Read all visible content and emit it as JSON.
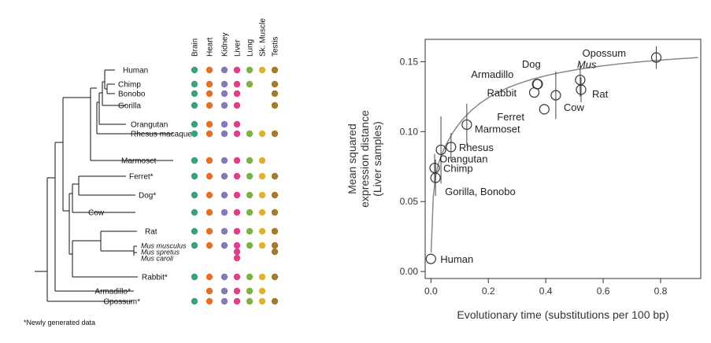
{
  "panel_a": {
    "tissues": [
      "Brain",
      "Heart",
      "Kidney",
      "Liver",
      "Lung",
      "Sk. Muscle",
      "Testis"
    ],
    "tissue_colors": [
      "#3aa27a",
      "#e2702a",
      "#8479b8",
      "#e03d8c",
      "#7ab342",
      "#e1b12e",
      "#a67a2c"
    ],
    "species": [
      {
        "name": "Human",
        "italic": false,
        "tissues": [
          1,
          1,
          1,
          1,
          1,
          1,
          1
        ]
      },
      {
        "name": "Chimp",
        "italic": false,
        "tissues": [
          1,
          1,
          1,
          1,
          1,
          0,
          1
        ]
      },
      {
        "name": "Bonobo",
        "italic": false,
        "tissues": [
          1,
          1,
          1,
          1,
          0,
          0,
          1
        ]
      },
      {
        "name": "Gorilla",
        "italic": false,
        "tissues": [
          1,
          1,
          1,
          1,
          0,
          0,
          1
        ]
      },
      {
        "name": "Orangutan",
        "italic": false,
        "tissues": [
          1,
          1,
          1,
          1,
          0,
          0,
          0
        ]
      },
      {
        "name": "Rhesus macaque*",
        "italic": false,
        "tissues": [
          1,
          1,
          1,
          1,
          1,
          1,
          1
        ]
      },
      {
        "name": "Marmoset",
        "italic": false,
        "tissues": [
          1,
          1,
          1,
          1,
          1,
          1,
          0
        ]
      },
      {
        "name": "Ferret*",
        "italic": false,
        "tissues": [
          1,
          1,
          1,
          1,
          1,
          1,
          1
        ]
      },
      {
        "name": "Dog*",
        "italic": false,
        "tissues": [
          1,
          1,
          1,
          1,
          1,
          1,
          1
        ]
      },
      {
        "name": "Cow",
        "italic": false,
        "tissues": [
          1,
          1,
          1,
          1,
          1,
          1,
          1
        ]
      },
      {
        "name": "Rat",
        "italic": false,
        "tissues": [
          1,
          1,
          1,
          1,
          1,
          1,
          1
        ]
      },
      {
        "name": "Mus musculus",
        "italic": true,
        "tissues": [
          1,
          1,
          1,
          1,
          1,
          1,
          1
        ]
      },
      {
        "name": "Mus spretus",
        "italic": true,
        "tissues": [
          0,
          0,
          0,
          1,
          0,
          0,
          1
        ]
      },
      {
        "name": "Mus caroli",
        "italic": true,
        "tissues": [
          0,
          0,
          0,
          1,
          0,
          0,
          0
        ]
      },
      {
        "name": "Rabbit*",
        "italic": false,
        "tissues": [
          1,
          1,
          1,
          1,
          1,
          1,
          1
        ]
      },
      {
        "name": "Armadillo*",
        "italic": false,
        "tissues": [
          0,
          1,
          1,
          1,
          1,
          1,
          0
        ]
      },
      {
        "name": "Opossum*",
        "italic": false,
        "tissues": [
          1,
          1,
          1,
          1,
          1,
          1,
          1
        ]
      }
    ],
    "footnote": "*Newly generated data"
  },
  "chart_data": {
    "type": "scatter",
    "xlabel": "Evolutionary time (substitutions per 100 bp)",
    "ylabel": [
      "Mean squared",
      "expression distance",
      "(Liver samples)"
    ],
    "xlim": [
      -0.02,
      0.94
    ],
    "ylim": [
      -0.005,
      0.166
    ],
    "xticks": [
      0.0,
      0.2,
      0.4,
      0.6,
      0.8
    ],
    "xtick_labels": [
      "0.0",
      "0.2",
      "0.4",
      "0.6",
      "0.8"
    ],
    "yticks": [
      0.0,
      0.05,
      0.1,
      0.15
    ],
    "ytick_labels": [
      "0.00",
      "0.05",
      "0.10",
      "0.15"
    ],
    "fit_curve": "saturating",
    "points": [
      {
        "name": "Human",
        "italic": false,
        "x": 0.0,
        "y": 0.009,
        "err": 0,
        "label_pos": "right"
      },
      {
        "name": "Chimp",
        "italic": false,
        "x": 0.013,
        "y": 0.074,
        "err": 0.01,
        "label_pos": "right"
      },
      {
        "name": "Gorilla, Bonobo",
        "italic": false,
        "x": 0.016,
        "y": 0.067,
        "err": 0.013,
        "label_pos": "right"
      },
      {
        "name": "Orangutan",
        "italic": false,
        "x": 0.035,
        "y": 0.087,
        "err": 0.024,
        "label_pos": "right"
      },
      {
        "name": "Rhesus",
        "italic": false,
        "x": 0.07,
        "y": 0.089,
        "err": 0.01,
        "label_pos": "right"
      },
      {
        "name": "Marmoset",
        "italic": false,
        "x": 0.125,
        "y": 0.105,
        "err": 0.015,
        "label_pos": "right"
      },
      {
        "name": "Armadillo",
        "italic": false,
        "x": 0.37,
        "y": 0.134,
        "err": 0,
        "label_pos": "left"
      },
      {
        "name": "Dog",
        "italic": false,
        "x": 0.372,
        "y": 0.134,
        "err": 0,
        "label_pos": "above"
      },
      {
        "name": "Rabbit",
        "italic": false,
        "x": 0.36,
        "y": 0.128,
        "err": 0,
        "label_pos": "left"
      },
      {
        "name": "Ferret",
        "italic": false,
        "x": 0.395,
        "y": 0.116,
        "err": 0,
        "label_pos": "left"
      },
      {
        "name": "Cow",
        "italic": false,
        "x": 0.435,
        "y": 0.126,
        "err": 0.017,
        "label_pos": "right"
      },
      {
        "name": "Mus",
        "italic": true,
        "x": 0.52,
        "y": 0.137,
        "err": 0.012,
        "label_pos": "right"
      },
      {
        "name": "Rat",
        "italic": false,
        "x": 0.523,
        "y": 0.13,
        "err": 0.009,
        "label_pos": "right"
      },
      {
        "name": "Opossum",
        "italic": false,
        "x": 0.785,
        "y": 0.153,
        "err": 0.008,
        "label_pos": "left"
      }
    ]
  }
}
